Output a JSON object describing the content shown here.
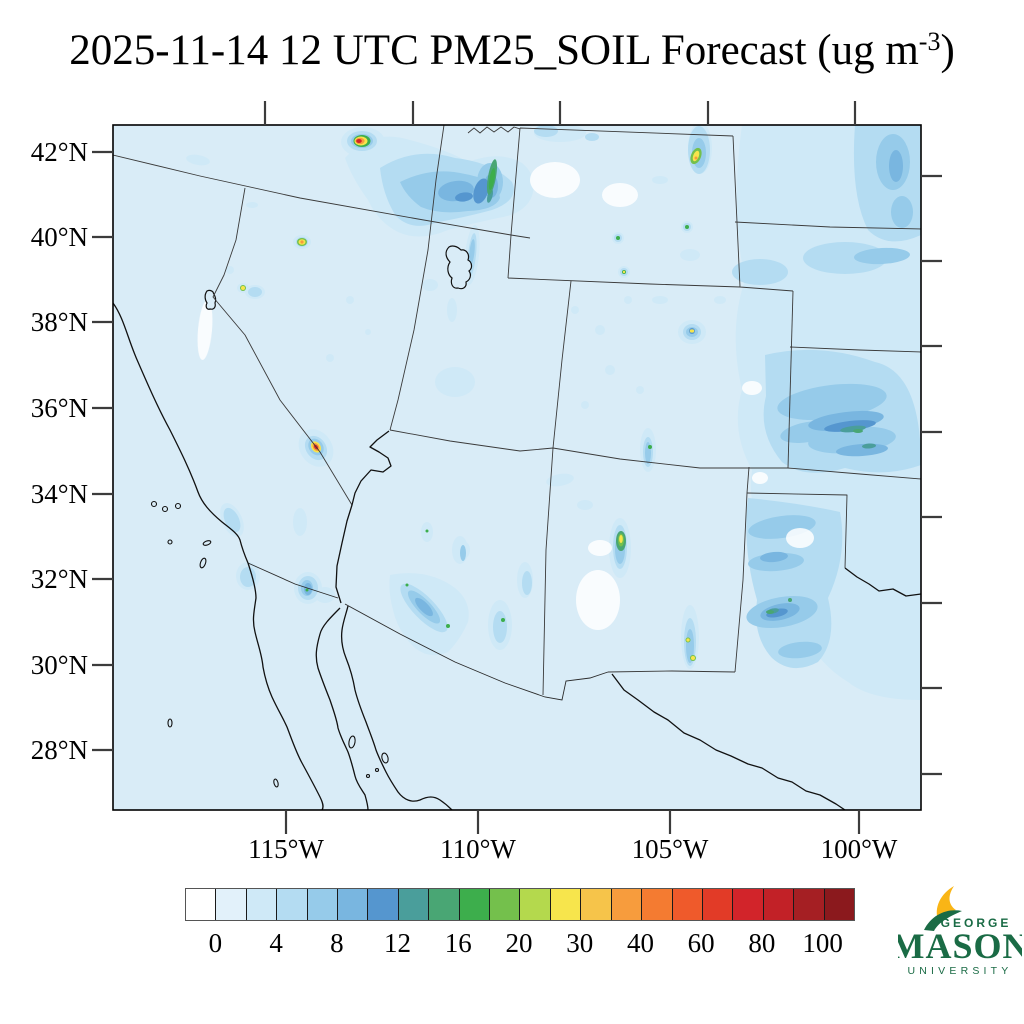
{
  "title": {
    "main": "2025-11-14 12 UTC PM25_SOIL Forecast (ug m",
    "sup": "-3",
    "close": ")"
  },
  "axes": {
    "lat_labels": [
      "42°N",
      "40°N",
      "38°N",
      "36°N",
      "34°N",
      "32°N",
      "30°N",
      "28°N"
    ],
    "lon_labels": [
      "115°W",
      "110°W",
      "105°W",
      "100°W"
    ]
  },
  "colorbar": {
    "tick_labels": [
      "0",
      "4",
      "8",
      "12",
      "16",
      "20",
      "30",
      "40",
      "60",
      "80",
      "100"
    ],
    "segment_colors": [
      "#ffffff",
      "#e2f1fa",
      "#cfe9f7",
      "#b4dcf2",
      "#96cbea",
      "#79b6e0",
      "#5596cf",
      "#4a9e9b",
      "#49a674",
      "#3dae4c",
      "#74c04c",
      "#b4d94d",
      "#f7e54c",
      "#f6c44a",
      "#f79c3d",
      "#f47b31",
      "#ef5a2b",
      "#e23b27",
      "#d2242a",
      "#c22127",
      "#a51f23",
      "#8b191d"
    ]
  },
  "map": {
    "background": "#d9ecf7",
    "border_color": "#000000"
  },
  "logo": {
    "line1": "GEORGE",
    "line2": "MASON",
    "line3": "UNIVERSITY",
    "green": "#1a6b45",
    "gold": "#f9b516"
  }
}
